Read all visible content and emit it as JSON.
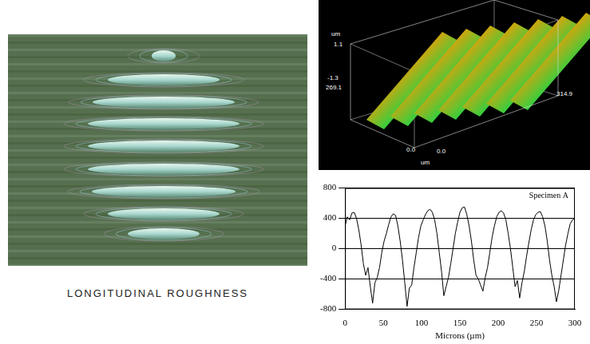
{
  "micrograph": {
    "caption": "LONGITUDINAL ROUGHNESS"
  },
  "surface_plot": {
    "labels": {
      "z_unit": "um",
      "z_max": "1.1",
      "z_min": "-1.3",
      "y_max": "269.1",
      "x_max": "314.9",
      "y_origin": "0.0",
      "x_origin": "0.0",
      "xy_unit": "um"
    }
  },
  "chart_data": {
    "type": "line",
    "title": "Specimen A",
    "x_label": "Microns (µm)",
    "x": [
      0,
      3,
      6,
      9,
      12,
      15,
      18,
      21,
      24,
      27,
      30,
      33,
      36,
      39,
      42,
      45,
      48,
      51,
      54,
      57,
      60,
      63,
      66,
      69,
      72,
      75,
      78,
      81,
      84,
      87,
      90,
      93,
      96,
      99,
      102,
      105,
      108,
      111,
      114,
      117,
      120,
      123,
      126,
      129,
      132,
      135,
      138,
      141,
      144,
      147,
      150,
      153,
      156,
      159,
      162,
      165,
      168,
      171,
      174,
      177,
      180,
      183,
      186,
      189,
      192,
      195,
      198,
      201,
      204,
      207,
      210,
      213,
      216,
      219,
      222,
      225,
      228,
      231,
      234,
      237,
      240,
      243,
      246,
      249,
      252,
      255,
      258,
      261,
      264,
      267,
      270,
      273,
      276,
      279,
      282,
      285,
      288,
      291,
      294,
      297,
      300
    ],
    "values": [
      300,
      420,
      380,
      470,
      480,
      400,
      250,
      50,
      -200,
      -350,
      -250,
      -500,
      -720,
      -450,
      -380,
      -250,
      -50,
      100,
      200,
      320,
      420,
      460,
      440,
      300,
      100,
      -150,
      -450,
      -760,
      -520,
      -480,
      -250,
      -50,
      150,
      300,
      380,
      450,
      500,
      520,
      480,
      380,
      200,
      -50,
      -300,
      -620,
      -500,
      -380,
      -200,
      0,
      200,
      350,
      480,
      540,
      550,
      450,
      300,
      100,
      -150,
      -350,
      -400,
      -480,
      -560,
      -380,
      -250,
      -50,
      150,
      300,
      420,
      480,
      500,
      470,
      380,
      200,
      0,
      -250,
      -500,
      -420,
      -650,
      -450,
      -300,
      -100,
      80,
      250,
      380,
      450,
      480,
      490,
      420,
      300,
      100,
      -150,
      -350,
      -500,
      -700,
      -550,
      -350,
      -150,
      50,
      200,
      330,
      380,
      400
    ],
    "color": "#000000",
    "xlim": [
      0,
      300
    ],
    "xticks": [
      0,
      50,
      100,
      150,
      200,
      250,
      300
    ],
    "ylim": [
      -800,
      800
    ],
    "yticks": [
      -800,
      -400,
      0,
      400,
      800
    ],
    "grid": "y"
  }
}
